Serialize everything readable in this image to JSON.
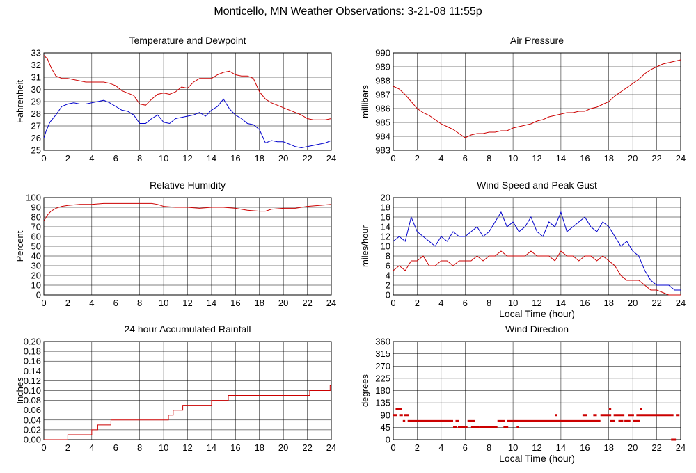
{
  "page": {
    "title": "Monticello, MN Weather Observations: 3-21-08 11:55p"
  },
  "chart_data": [
    {
      "type": "line",
      "title": "Temperature and Dewpoint",
      "xlabel": "",
      "ylabel": "Fahrenheit",
      "xlim": [
        0,
        24
      ],
      "ylim": [
        25,
        33
      ],
      "xticks": [
        0,
        2,
        4,
        6,
        8,
        10,
        12,
        14,
        16,
        18,
        20,
        22,
        24
      ],
      "yticks": [
        25,
        26,
        27,
        28,
        29,
        30,
        31,
        32,
        33
      ],
      "grid": true,
      "series": [
        {
          "color": "#cc0000",
          "x": [
            0,
            0.3,
            0.6,
            1,
            1.5,
            2,
            2.5,
            3,
            3.5,
            4,
            4.5,
            5,
            5.5,
            6,
            6.5,
            7,
            7.5,
            8,
            8.5,
            9,
            9.5,
            10,
            10.5,
            11,
            11.5,
            12,
            12.5,
            13,
            13.5,
            14,
            14.5,
            15,
            15.5,
            16,
            16.5,
            17,
            17.5,
            18,
            18.5,
            19,
            19.5,
            20,
            20.5,
            21,
            21.5,
            22,
            22.5,
            23,
            23.5,
            24
          ],
          "y": [
            32.8,
            32.5,
            31.8,
            31.1,
            30.9,
            30.9,
            30.8,
            30.7,
            30.6,
            30.6,
            30.6,
            30.6,
            30.5,
            30.3,
            29.9,
            29.7,
            29.5,
            28.8,
            28.7,
            29.2,
            29.6,
            29.7,
            29.6,
            29.8,
            30.2,
            30.1,
            30.6,
            30.9,
            30.9,
            30.9,
            31.2,
            31.4,
            31.5,
            31.2,
            31.1,
            31.1,
            30.9,
            29.8,
            29.2,
            28.9,
            28.7,
            28.5,
            28.3,
            28.1,
            27.9,
            27.6,
            27.5,
            27.5,
            27.5,
            27.6
          ]
        },
        {
          "color": "#0000cc",
          "x": [
            0,
            0.2,
            0.5,
            1,
            1.5,
            2,
            2.5,
            3,
            3.5,
            4,
            4.5,
            5,
            5.5,
            6,
            6.5,
            7,
            7.5,
            8,
            8.5,
            9,
            9.5,
            10,
            10.5,
            11,
            11.5,
            12,
            12.5,
            13,
            13.5,
            14,
            14.5,
            15,
            15.5,
            16,
            16.5,
            17,
            17.5,
            18,
            18.5,
            19,
            19.5,
            20,
            20.5,
            21,
            21.5,
            22,
            22.5,
            23,
            23.5,
            24
          ],
          "y": [
            26.0,
            26.6,
            27.3,
            27.9,
            28.6,
            28.8,
            28.9,
            28.8,
            28.8,
            28.9,
            29.0,
            29.1,
            28.9,
            28.6,
            28.3,
            28.2,
            27.9,
            27.2,
            27.2,
            27.6,
            27.9,
            27.3,
            27.2,
            27.6,
            27.7,
            27.8,
            27.9,
            28.1,
            27.8,
            28.3,
            28.6,
            29.2,
            28.4,
            27.9,
            27.6,
            27.2,
            27.1,
            26.7,
            25.6,
            25.8,
            25.7,
            25.7,
            25.5,
            25.3,
            25.2,
            25.3,
            25.4,
            25.5,
            25.6,
            25.8
          ]
        }
      ]
    },
    {
      "type": "line",
      "title": "Air Pressure",
      "xlabel": "",
      "ylabel": "millibars",
      "xlim": [
        0,
        24
      ],
      "ylim": [
        983,
        990
      ],
      "xticks": [
        0,
        2,
        4,
        6,
        8,
        10,
        12,
        14,
        16,
        18,
        20,
        22,
        24
      ],
      "yticks": [
        983,
        984,
        985,
        986,
        987,
        988,
        989,
        990
      ],
      "grid": true,
      "series": [
        {
          "color": "#cc0000",
          "x": [
            0,
            0.5,
            1,
            1.5,
            2,
            2.5,
            3,
            3.5,
            4,
            4.5,
            5,
            5.5,
            6,
            6.5,
            7,
            7.5,
            8,
            8.5,
            9,
            9.5,
            10,
            10.5,
            11,
            11.5,
            12,
            12.5,
            13,
            13.5,
            14,
            14.5,
            15,
            15.5,
            16,
            16.5,
            17,
            17.5,
            18,
            18.5,
            19,
            19.5,
            20,
            20.5,
            21,
            21.5,
            22,
            22.5,
            23,
            23.5,
            24
          ],
          "y": [
            987.6,
            987.4,
            987.0,
            986.5,
            986.0,
            985.7,
            985.5,
            985.2,
            984.9,
            984.7,
            984.5,
            984.2,
            983.9,
            984.1,
            984.2,
            984.2,
            984.3,
            984.3,
            984.4,
            984.4,
            984.6,
            984.7,
            984.8,
            984.9,
            985.1,
            985.2,
            985.4,
            985.5,
            985.6,
            985.7,
            985.7,
            985.8,
            985.8,
            986.0,
            986.1,
            986.3,
            986.5,
            986.9,
            987.2,
            987.5,
            987.8,
            988.1,
            988.5,
            988.8,
            989.0,
            989.2,
            989.3,
            989.4,
            989.5
          ]
        }
      ]
    },
    {
      "type": "line",
      "title": "Relative Humidity",
      "xlabel": "",
      "ylabel": "Percent",
      "xlim": [
        0,
        24
      ],
      "ylim": [
        0,
        100
      ],
      "xticks": [
        0,
        2,
        4,
        6,
        8,
        10,
        12,
        14,
        16,
        18,
        20,
        22,
        24
      ],
      "yticks": [
        0,
        10,
        20,
        30,
        40,
        50,
        60,
        70,
        80,
        90,
        100
      ],
      "grid": true,
      "series": [
        {
          "color": "#cc0000",
          "x": [
            0,
            0.3,
            0.6,
            1,
            1.5,
            2,
            3,
            4,
            5,
            6,
            7,
            8,
            9,
            9.5,
            10,
            11,
            12,
            13,
            14,
            15,
            16,
            17,
            18,
            18.5,
            19,
            20,
            21,
            22,
            23,
            24
          ],
          "y": [
            76,
            82,
            86,
            89,
            91,
            92,
            93,
            93,
            94,
            94,
            94,
            94,
            94,
            93,
            91,
            90,
            90,
            89,
            90,
            90,
            89,
            87,
            86,
            86,
            88,
            89,
            89,
            91,
            92,
            93
          ]
        }
      ]
    },
    {
      "type": "line",
      "title": "Wind Speed and Peak Gust",
      "xlabel": "Local Time (hour)",
      "ylabel": "miles/hour",
      "xlim": [
        0,
        24
      ],
      "ylim": [
        0,
        20
      ],
      "xticks": [
        0,
        2,
        4,
        6,
        8,
        10,
        12,
        14,
        16,
        18,
        20,
        22,
        24
      ],
      "yticks": [
        0,
        2,
        4,
        6,
        8,
        10,
        12,
        14,
        16,
        18,
        20
      ],
      "grid": true,
      "series": [
        {
          "color": "#0000cc",
          "x": [
            0,
            0.5,
            1,
            1.5,
            2,
            2.5,
            3,
            3.5,
            4,
            4.5,
            5,
            5.5,
            6,
            6.5,
            7,
            7.5,
            8,
            8.5,
            9,
            9.5,
            10,
            10.5,
            11,
            11.5,
            12,
            12.5,
            13,
            13.5,
            14,
            14.5,
            15,
            15.5,
            16,
            16.5,
            17,
            17.5,
            18,
            18.5,
            19,
            19.5,
            20,
            20.5,
            21,
            21.5,
            22,
            22.5,
            23,
            23.5,
            24
          ],
          "y": [
            11,
            12,
            11,
            16,
            13,
            12,
            11,
            10,
            12,
            11,
            13,
            12,
            12,
            13,
            14,
            12,
            13,
            15,
            17,
            14,
            15,
            13,
            14,
            16,
            13,
            12,
            15,
            14,
            17,
            13,
            14,
            15,
            16,
            14,
            13,
            15,
            14,
            12,
            10,
            11,
            9,
            8,
            5,
            3,
            2,
            2,
            2,
            1,
            1
          ]
        },
        {
          "color": "#cc0000",
          "x": [
            0,
            0.5,
            1,
            1.5,
            2,
            2.5,
            3,
            3.5,
            4,
            4.5,
            5,
            5.5,
            6,
            6.5,
            7,
            7.5,
            8,
            8.5,
            9,
            9.5,
            10,
            10.5,
            11,
            11.5,
            12,
            12.5,
            13,
            13.5,
            14,
            14.5,
            15,
            15.5,
            16,
            16.5,
            17,
            17.5,
            18,
            18.5,
            19,
            19.5,
            20,
            20.5,
            21,
            21.5,
            22,
            22.5,
            23,
            23.5,
            24
          ],
          "y": [
            5,
            6,
            5,
            7,
            7,
            8,
            6,
            6,
            7,
            7,
            6,
            7,
            7,
            7,
            8,
            7,
            8,
            8,
            9,
            8,
            8,
            8,
            8,
            9,
            8,
            8,
            8,
            7,
            9,
            8,
            8,
            7,
            8,
            8,
            7,
            8,
            7,
            6,
            4,
            3,
            3,
            3,
            2,
            1,
            1,
            0.5,
            0,
            0,
            0
          ]
        }
      ]
    },
    {
      "type": "line",
      "title": "24 hour Accumulated Rainfall",
      "xlabel": "",
      "ylabel": "Inches",
      "xlim": [
        0,
        24
      ],
      "ylim": [
        0,
        0.2
      ],
      "xticks": [
        0,
        2,
        4,
        6,
        8,
        10,
        12,
        14,
        16,
        18,
        20,
        22,
        24
      ],
      "yticks": [
        "0.00",
        "0.02",
        "0.04",
        "0.06",
        "0.08",
        "0.10",
        "0.12",
        "0.14",
        "0.16",
        "0.18",
        "0.20"
      ],
      "grid": true,
      "series": [
        {
          "color": "#cc0000",
          "step": true,
          "x": [
            0,
            2.0,
            4.0,
            4.5,
            5.6,
            10.0,
            10.4,
            10.8,
            11.6,
            14.0,
            15.4,
            22.2,
            23.9,
            24
          ],
          "y": [
            0.0,
            0.01,
            0.02,
            0.03,
            0.04,
            0.04,
            0.05,
            0.06,
            0.07,
            0.08,
            0.09,
            0.1,
            0.11,
            0.11
          ]
        }
      ]
    },
    {
      "type": "scatter",
      "title": "Wind Direction",
      "xlabel": "Local Time (hour)",
      "ylabel": "degrees",
      "xlim": [
        0,
        24
      ],
      "ylim": [
        0,
        360
      ],
      "xticks": [
        0,
        2,
        4,
        6,
        8,
        10,
        12,
        14,
        16,
        18,
        20,
        22,
        24
      ],
      "yticks": [
        0,
        45,
        90,
        135,
        180,
        225,
        270,
        315,
        360
      ],
      "grid": true,
      "series": [
        {
          "color": "#cc0000",
          "segments": [
            {
              "x0": 0.0,
              "x1": 0.3,
              "y": 90
            },
            {
              "x0": 0.2,
              "x1": 0.7,
              "y": 113
            },
            {
              "x0": 0.5,
              "x1": 0.8,
              "y": 90
            },
            {
              "x0": 0.8,
              "x1": 1.0,
              "y": 68
            },
            {
              "x0": 0.9,
              "x1": 1.3,
              "y": 90
            },
            {
              "x0": 1.2,
              "x1": 5.0,
              "y": 68
            },
            {
              "x0": 5.0,
              "x1": 5.3,
              "y": 45
            },
            {
              "x0": 5.2,
              "x1": 5.5,
              "y": 68
            },
            {
              "x0": 5.4,
              "x1": 6.2,
              "y": 45
            },
            {
              "x0": 6.2,
              "x1": 6.8,
              "y": 68
            },
            {
              "x0": 6.5,
              "x1": 7.2,
              "y": 45
            },
            {
              "x0": 7.2,
              "x1": 8.7,
              "y": 45
            },
            {
              "x0": 8.7,
              "x1": 9.3,
              "y": 68
            },
            {
              "x0": 9.2,
              "x1": 9.6,
              "y": 45
            },
            {
              "x0": 9.5,
              "x1": 16.0,
              "y": 68
            },
            {
              "x0": 10.3,
              "x1": 10.5,
              "y": 45
            },
            {
              "x0": 13.5,
              "x1": 13.7,
              "y": 90
            },
            {
              "x0": 15.8,
              "x1": 16.2,
              "y": 90
            },
            {
              "x0": 16.0,
              "x1": 17.3,
              "y": 68
            },
            {
              "x0": 16.7,
              "x1": 17.0,
              "y": 90
            },
            {
              "x0": 17.3,
              "x1": 18.2,
              "y": 90
            },
            {
              "x0": 18.0,
              "x1": 18.2,
              "y": 113
            },
            {
              "x0": 18.1,
              "x1": 18.5,
              "y": 68
            },
            {
              "x0": 18.4,
              "x1": 19.3,
              "y": 90
            },
            {
              "x0": 18.8,
              "x1": 19.2,
              "y": 68
            },
            {
              "x0": 19.3,
              "x1": 19.8,
              "y": 68
            },
            {
              "x0": 19.6,
              "x1": 20.1,
              "y": 90
            },
            {
              "x0": 20.0,
              "x1": 20.6,
              "y": 68
            },
            {
              "x0": 20.3,
              "x1": 23.4,
              "y": 90
            },
            {
              "x0": 20.6,
              "x1": 20.8,
              "y": 113
            },
            {
              "x0": 23.2,
              "x1": 23.6,
              "y": 0
            },
            {
              "x0": 23.6,
              "x1": 23.9,
              "y": 90
            }
          ]
        }
      ]
    }
  ]
}
